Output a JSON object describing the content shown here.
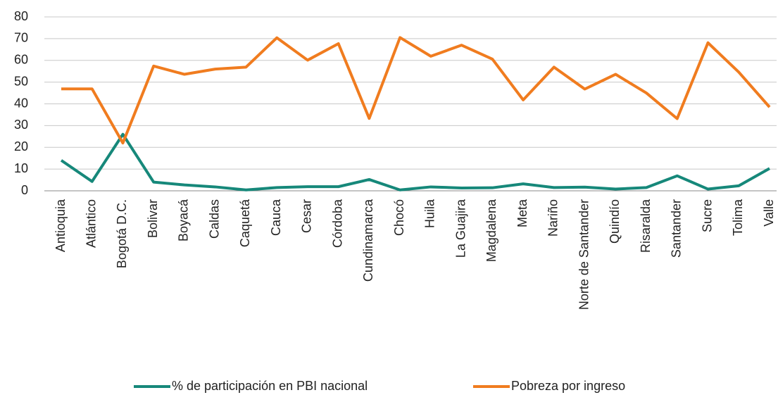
{
  "chart_data": {
    "type": "line",
    "categories": [
      "Antioquia",
      "Atlántico",
      "Bogotá D.C.",
      "Bolivar",
      "Boyacá",
      "Caldas",
      "Caquetá",
      "Cauca",
      "Cesar",
      "Córdoba",
      "Cundinamarca",
      "Chocó",
      "Huila",
      "La Guajira",
      "Magdalena",
      "Meta",
      "Nariño",
      "Norte de Santander",
      "Quindío",
      "Risaralda",
      "Santander",
      "Sucre",
      "Tolima",
      "Valle"
    ],
    "series": [
      {
        "name": "% de participación en PBI nacional",
        "color": "#16887a",
        "values": [
          14,
          4.3,
          26,
          4,
          2.7,
          1.8,
          0.4,
          1.5,
          1.9,
          1.9,
          5.2,
          0.4,
          1.8,
          1.3,
          1.4,
          3.2,
          1.5,
          1.7,
          0.8,
          1.5,
          6.9,
          0.8,
          2.3,
          10.3
        ]
      },
      {
        "name": "Pobreza por ingreso",
        "color": "#f07c1f",
        "values": [
          46.9,
          46.9,
          22,
          57.4,
          53.6,
          56,
          56.9,
          70.4,
          60.1,
          67.7,
          33.3,
          70.5,
          61.9,
          67,
          60.6,
          41.8,
          56.9,
          46.8,
          53.6,
          45,
          33.2,
          68.1,
          54.6,
          38.5
        ]
      }
    ],
    "ylim": [
      0,
      80
    ],
    "yticks": [
      0,
      10,
      20,
      30,
      40,
      50,
      60,
      70,
      80
    ],
    "grid": true,
    "legend": "bottom"
  }
}
